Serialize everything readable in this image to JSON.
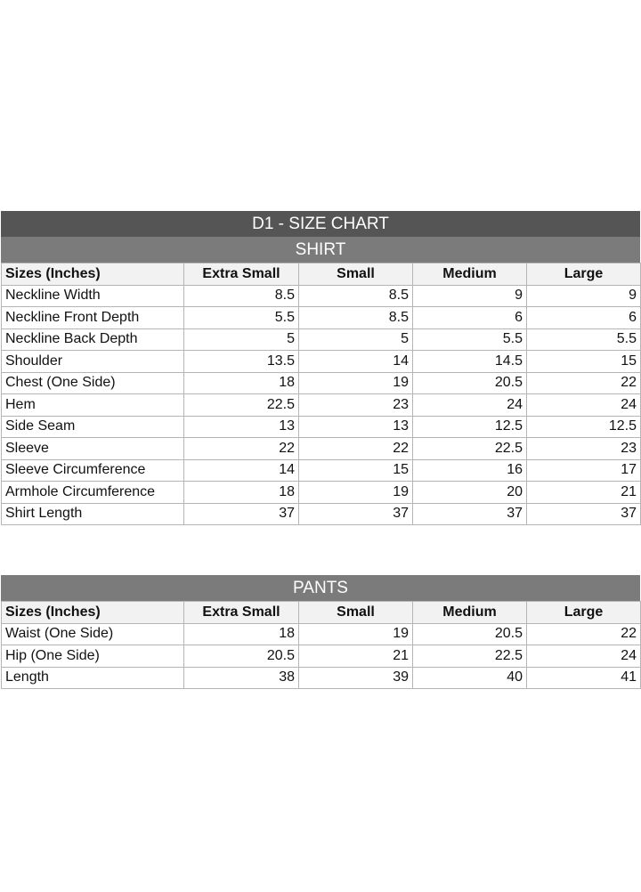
{
  "title": "D1 - SIZE CHART",
  "shirt": {
    "heading": "SHIRT",
    "columns": [
      "Sizes (Inches)",
      "Extra Small",
      "Small",
      "Medium",
      "Large"
    ],
    "rows": [
      [
        "Neckline Width",
        "8.5",
        "8.5",
        "9",
        "9"
      ],
      [
        "Neckline Front Depth",
        "5.5",
        "8.5",
        "6",
        "6"
      ],
      [
        "Neckline Back Depth",
        "5",
        "5",
        "5.5",
        "5.5"
      ],
      [
        "Shoulder",
        "13.5",
        "14",
        "14.5",
        "15"
      ],
      [
        "Chest (One Side)",
        "18",
        "19",
        "20.5",
        "22"
      ],
      [
        "Hem",
        "22.5",
        "23",
        "24",
        "24"
      ],
      [
        "Side Seam",
        "13",
        "13",
        "12.5",
        "12.5"
      ],
      [
        "Sleeve",
        "22",
        "22",
        "22.5",
        "23"
      ],
      [
        "Sleeve Circumference",
        "14",
        "15",
        "16",
        "17"
      ],
      [
        "Armhole Circumference",
        "18",
        "19",
        "20",
        "21"
      ],
      [
        "Shirt Length",
        "37",
        "37",
        "37",
        "37"
      ]
    ]
  },
  "pants": {
    "heading": "PANTS",
    "columns": [
      "Sizes (Inches)",
      "Extra Small",
      "Small",
      "Medium",
      "Large"
    ],
    "rows": [
      [
        "Waist (One Side)",
        "18",
        "19",
        "20.5",
        "22"
      ],
      [
        "Hip (One Side)",
        "20.5",
        "21",
        "22.5",
        "24"
      ],
      [
        "Length",
        "38",
        "39",
        "40",
        "41"
      ]
    ]
  }
}
